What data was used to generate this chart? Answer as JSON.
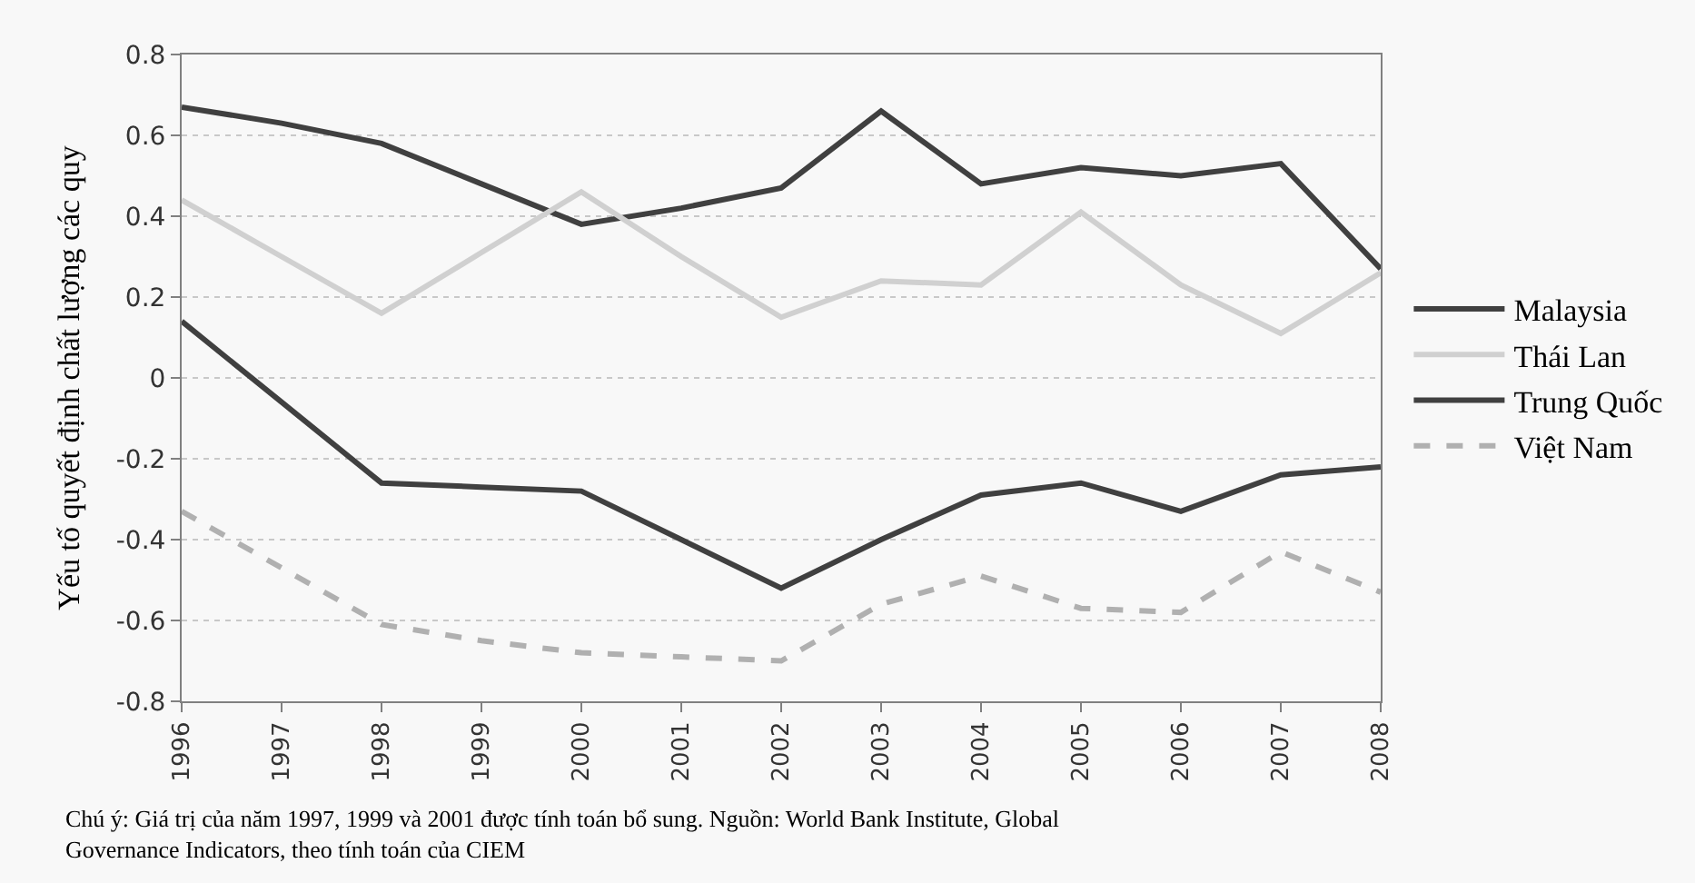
{
  "chart_data": {
    "type": "line",
    "ylabel": "Yếu tố quyết định chất lượng các quy",
    "categories": [
      "1996",
      "1997",
      "1998",
      "1999",
      "2000",
      "2001",
      "2002",
      "2003",
      "2004",
      "2005",
      "2006",
      "2007",
      "2008"
    ],
    "series": [
      {
        "name": "Malaysia",
        "color": "#404040",
        "line_style": "solid",
        "values": [
          0.67,
          0.63,
          0.58,
          0.48,
          0.38,
          0.42,
          0.47,
          0.66,
          0.48,
          0.52,
          0.5,
          0.53,
          0.27
        ]
      },
      {
        "name": "Thái Lan",
        "color": "#d0d0d0",
        "line_style": "solid",
        "values": [
          0.44,
          0.3,
          0.16,
          0.31,
          0.46,
          0.3,
          0.15,
          0.24,
          0.23,
          0.41,
          0.23,
          0.11,
          0.26
        ]
      },
      {
        "name": "Trung Quốc",
        "color": "#404040",
        "line_style": "solid",
        "values": [
          0.14,
          -0.06,
          -0.26,
          -0.27,
          -0.28,
          -0.4,
          -0.52,
          -0.4,
          -0.29,
          -0.26,
          -0.33,
          -0.24,
          -0.22
        ]
      },
      {
        "name": "Việt Nam",
        "color": "#b0b0b0",
        "line_style": "dashed",
        "values": [
          -0.33,
          -0.47,
          -0.61,
          -0.65,
          -0.68,
          -0.69,
          -0.7,
          -0.56,
          -0.49,
          -0.57,
          -0.58,
          -0.43,
          -0.53
        ]
      }
    ],
    "ylim": [
      -0.8,
      0.8
    ],
    "yticks": [
      -0.8,
      -0.6,
      -0.4,
      -0.2,
      0,
      0.2,
      0.4,
      0.6,
      0.8
    ],
    "grid": "y",
    "legend": "right",
    "marker": "none",
    "annotations": [
      "Chú ý: Giá trị của năm 1997, 1999 và 2001 được tính toán bổ sung. Nguồn: World Bank Institute, Global Governance Indicators, theo tính toán của CIEM"
    ]
  }
}
